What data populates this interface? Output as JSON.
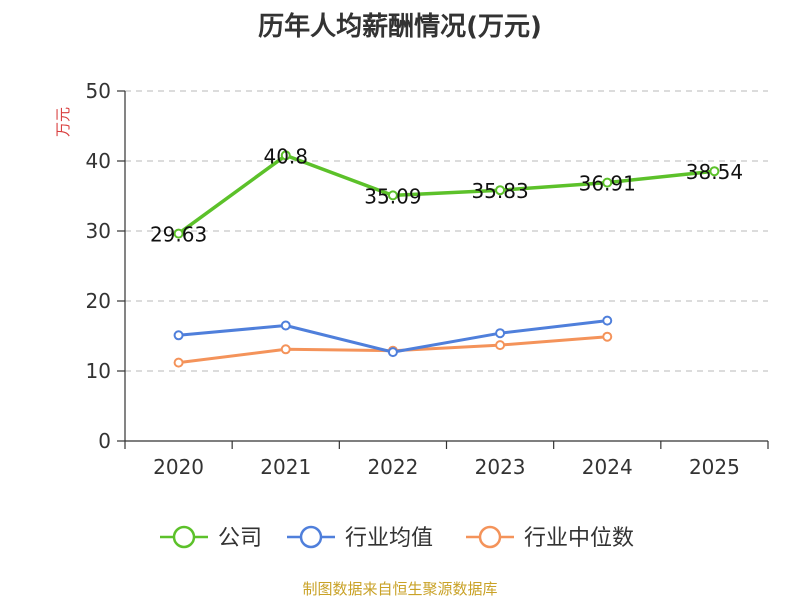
{
  "chart_data": {
    "type": "line",
    "title": "历年人均薪酬情况(万元)",
    "ylabel": "万元",
    "xlabel": "",
    "categories": [
      "2020",
      "2021",
      "2022",
      "2023",
      "2024",
      "2025"
    ],
    "ylim": [
      0,
      50
    ],
    "yticks": [
      0,
      10,
      20,
      30,
      40,
      50
    ],
    "grid": true,
    "legend_position": "bottom",
    "series": [
      {
        "name": "公司",
        "color": "#5cc12a",
        "values": [
          29.63,
          40.8,
          35.09,
          35.83,
          36.91,
          38.54
        ],
        "labels": [
          "29.63",
          "40.8",
          "35.09",
          "35.83",
          "36.91",
          "38.54"
        ]
      },
      {
        "name": "行业均值",
        "color": "#4f7fdb",
        "values": [
          15.1,
          16.5,
          12.7,
          15.4,
          17.2,
          null
        ]
      },
      {
        "name": "行业中位数",
        "color": "#f4935a",
        "values": [
          11.2,
          13.1,
          12.9,
          13.7,
          14.9,
          null
        ]
      }
    ]
  },
  "source": "制图数据来自恒生聚源数据库"
}
